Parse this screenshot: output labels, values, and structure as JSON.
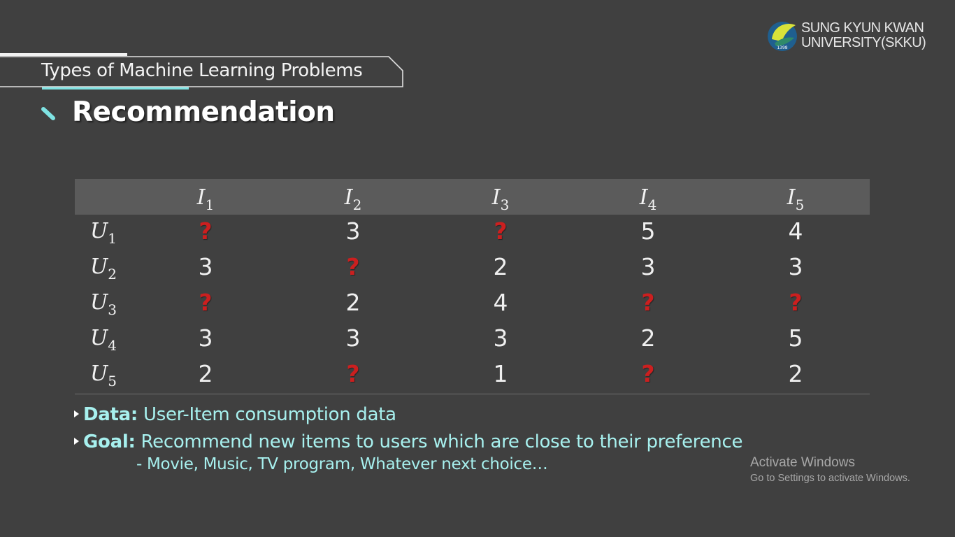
{
  "logo": {
    "line1": "SUNG KYUN KWAN",
    "line2": "UNIVERSITY(SKKU)",
    "emblem_year": "1398"
  },
  "section_title": "Types of Machine Learning Problems",
  "heading": "Recommendation",
  "table": {
    "columns": [
      {
        "base": "I",
        "sub": "1"
      },
      {
        "base": "I",
        "sub": "2"
      },
      {
        "base": "I",
        "sub": "3"
      },
      {
        "base": "I",
        "sub": "4"
      },
      {
        "base": "I",
        "sub": "5"
      }
    ],
    "rows": [
      {
        "label": {
          "base": "U",
          "sub": "1"
        },
        "cells": [
          "?",
          "3",
          "?",
          "5",
          "4"
        ]
      },
      {
        "label": {
          "base": "U",
          "sub": "2"
        },
        "cells": [
          "3",
          "?",
          "2",
          "3",
          "3"
        ]
      },
      {
        "label": {
          "base": "U",
          "sub": "3"
        },
        "cells": [
          "?",
          "2",
          "4",
          "?",
          "?"
        ]
      },
      {
        "label": {
          "base": "U",
          "sub": "4"
        },
        "cells": [
          "3",
          "3",
          "3",
          "2",
          "5"
        ]
      },
      {
        "label": {
          "base": "U",
          "sub": "5"
        },
        "cells": [
          "2",
          "?",
          "1",
          "?",
          "2"
        ]
      }
    ]
  },
  "bullets": {
    "data_key": "Data:",
    "data_text": " User-Item consumption data",
    "goal_key": "Goal:",
    "goal_text": " Recommend new items to users which are close to their preference",
    "goal_sub": "- Movie, Music, TV program, Whatever next choice…"
  },
  "watermark": {
    "title": "Activate Windows",
    "subtitle": "Go to Settings to activate Windows."
  },
  "colors": {
    "background": "#404040",
    "accent_cyan": "#7fe3e3",
    "bullet_text": "#a7f0ee",
    "unknown_mark": "#cc1f1f",
    "table_header": "#5b5b5b"
  }
}
